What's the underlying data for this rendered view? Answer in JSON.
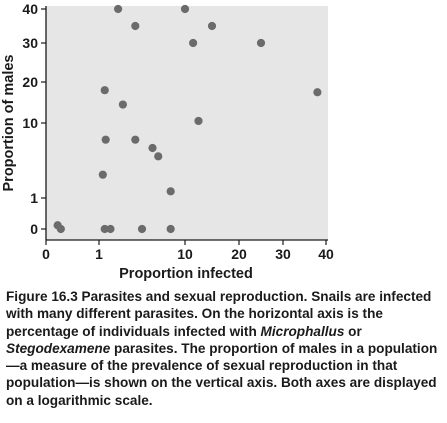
{
  "chart_data": {
    "type": "scatter",
    "scale": "log",
    "grid": false,
    "background": "#e6e6e6",
    "point_color": "#6b6b6b",
    "xlabel": "Proportion infected",
    "ylabel": "Proportion of males",
    "x_ticks": [
      "0",
      "1",
      "10",
      "20",
      "30",
      "40"
    ],
    "y_ticks": [
      "0",
      "1",
      "10",
      "20",
      "30",
      "40"
    ],
    "points": [
      {
        "x": 0.22,
        "y": 0.12
      },
      {
        "x": 0.28,
        "y": 0
      },
      {
        "x": 3.0,
        "y": 40
      },
      {
        "x": 10.0,
        "y": 40
      },
      {
        "x": 4.8,
        "y": 35
      },
      {
        "x": 15,
        "y": 35
      },
      {
        "x": 11.5,
        "y": 30
      },
      {
        "x": 25,
        "y": 30
      },
      {
        "x": 1.6,
        "y": 18
      },
      {
        "x": 3.5,
        "y": 14.5
      },
      {
        "x": 38,
        "y": 17.5
      },
      {
        "x": 12.5,
        "y": 10.5
      },
      {
        "x": 1.7,
        "y": 8
      },
      {
        "x": 4.8,
        "y": 8
      },
      {
        "x": 6.6,
        "y": 7
      },
      {
        "x": 7.2,
        "y": 6
      },
      {
        "x": 1.4,
        "y": 3.8
      },
      {
        "x": 8.5,
        "y": 1.8
      },
      {
        "x": 1.6,
        "y": 0
      },
      {
        "x": 2.2,
        "y": 0
      },
      {
        "x": 5.5,
        "y": 0
      },
      {
        "x": 8.5,
        "y": 0
      }
    ]
  },
  "caption": {
    "figure_label": "Figure 16.3 Parasites and sexual reproduction.",
    "part1": " Snails are infected with many different parasites. On the horizontal axis is the percentage of individuals infected with ",
    "genus1": "Microphallus",
    "part2": " or ",
    "genus2": "Stegodexamene",
    "part3": " parasites. The proportion of males in a population—a measure of the prevalence of sexual reproduction in that population—is shown on the vertical axis. Both axes are displayed on a logarithmic scale."
  }
}
